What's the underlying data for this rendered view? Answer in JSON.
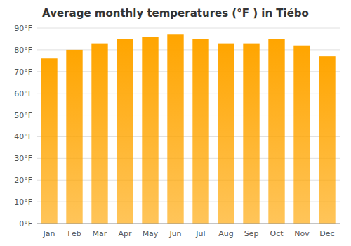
{
  "chart_data": {
    "type": "bar",
    "title": "Average monthly temperatures (°F ) in Tiébo",
    "categories": [
      "Jan",
      "Feb",
      "Mar",
      "Apr",
      "May",
      "Jun",
      "Jul",
      "Aug",
      "Sep",
      "Oct",
      "Nov",
      "Dec"
    ],
    "values": [
      76,
      80,
      83,
      85,
      86,
      87,
      85,
      83,
      83,
      85,
      82,
      77
    ],
    "color": "#FFA500",
    "ylim": [
      0,
      90
    ],
    "yticks": [
      {
        "value": 0,
        "label": "0°F"
      },
      {
        "value": 10,
        "label": "10°F"
      },
      {
        "value": 20,
        "label": "20°F"
      },
      {
        "value": 30,
        "label": "30°F"
      },
      {
        "value": 40,
        "label": "40°F"
      },
      {
        "value": 50,
        "label": "50°F"
      },
      {
        "value": 60,
        "label": "60°F"
      },
      {
        "value": 70,
        "label": "70°F"
      },
      {
        "value": 80,
        "label": "80°F"
      },
      {
        "value": 90,
        "label": "90°F"
      }
    ],
    "grid": true
  }
}
